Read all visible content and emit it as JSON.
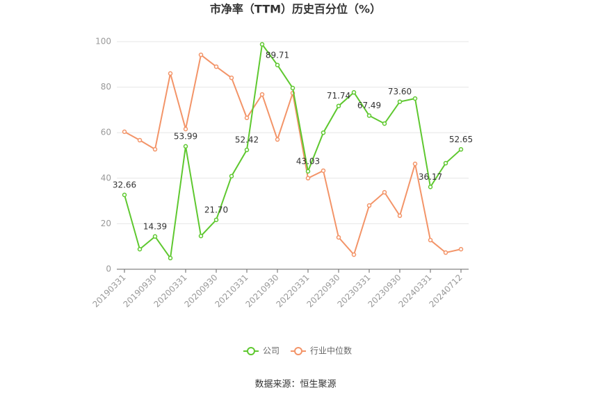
{
  "chart_data": {
    "type": "line",
    "title": "市净率（TTM）历史百分位（%）",
    "source": "数据来源：恒生聚源",
    "categories": [
      "20190331",
      null,
      "20190930",
      null,
      "20200331",
      null,
      "20200930",
      null,
      "20210331",
      null,
      "20210930",
      null,
      "20220331",
      null,
      "20220930",
      null,
      "20230331",
      null,
      "20230930",
      null,
      "20240331",
      null,
      "20240712"
    ],
    "series": [
      {
        "name": "公司",
        "color": "#5ec82f",
        "values": [
          32.66,
          8.8,
          14.39,
          4.9,
          53.99,
          14.6,
          21.7,
          40.9,
          52.42,
          98.8,
          89.71,
          79.6,
          43.03,
          60,
          71.74,
          77.7,
          67.49,
          64,
          73.6,
          75,
          36.17,
          46.6,
          52.65
        ],
        "value_labels": [
          "32.66",
          null,
          "14.39",
          null,
          "53.99",
          null,
          "21.70",
          null,
          "52.42",
          null,
          "89.71",
          null,
          "43.03",
          null,
          "71.74",
          null,
          "67.49",
          null,
          "73.60",
          null,
          "36.17",
          null,
          "52.65"
        ]
      },
      {
        "name": "行业中位数",
        "color": "#f39468",
        "values": [
          60.4,
          56.7,
          52.7,
          86,
          61.6,
          94.2,
          89,
          84.1,
          66.5,
          76.8,
          57,
          77.4,
          40,
          43.3,
          14,
          6.4,
          28,
          33.8,
          23.5,
          46.3,
          12.8,
          7.3,
          8.8
        ]
      }
    ],
    "ylim": [
      0,
      100
    ],
    "yticks": [
      0,
      20,
      40,
      60,
      80,
      100
    ],
    "grid": true,
    "legend": "bottom"
  }
}
